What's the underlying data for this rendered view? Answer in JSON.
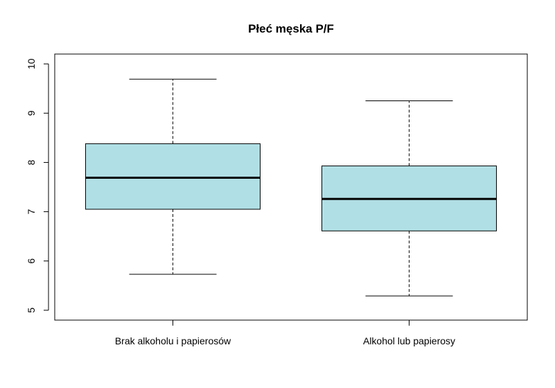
{
  "chart_data": {
    "type": "boxplot",
    "title": "Płeć męska P/F",
    "xlabel": "",
    "ylabel": "",
    "ylim": [
      4.8,
      10.2
    ],
    "yticks": [
      5,
      6,
      7,
      8,
      9,
      10
    ],
    "grid": false,
    "categories": [
      "Brak alkoholu i papierosów",
      "Alkohol lub papierosy"
    ],
    "boxes": [
      {
        "whisker_low": 5.73,
        "q1": 7.05,
        "median": 7.69,
        "q3": 8.38,
        "whisker_high": 9.69
      },
      {
        "whisker_low": 5.29,
        "q1": 6.61,
        "median": 7.26,
        "q3": 7.93,
        "whisker_high": 9.25
      }
    ],
    "box_fill": "#b0dfe5",
    "line_color": "#000000"
  }
}
